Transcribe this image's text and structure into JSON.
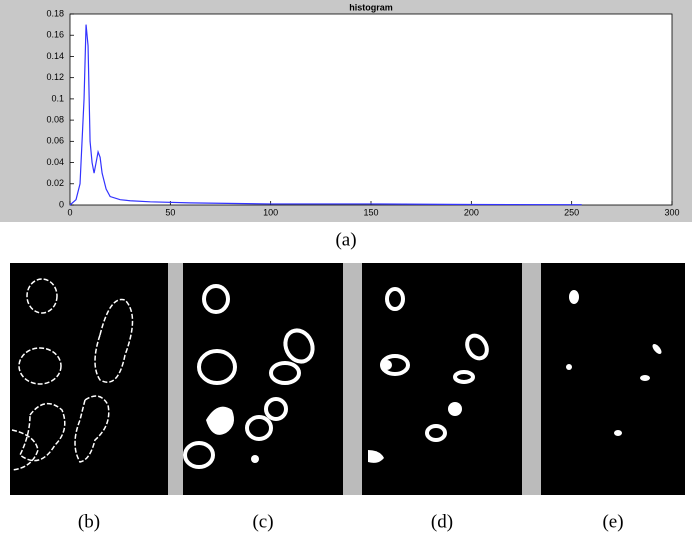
{
  "chart_data": {
    "type": "line",
    "title": "histogram",
    "x": [
      0,
      3,
      5,
      7,
      8,
      9,
      10,
      11,
      12,
      13,
      14,
      15,
      16,
      18,
      20,
      25,
      30,
      40,
      60,
      100,
      150,
      200,
      255
    ],
    "values": [
      0,
      0.005,
      0.02,
      0.1,
      0.17,
      0.15,
      0.06,
      0.04,
      0.03,
      0.04,
      0.05,
      0.045,
      0.03,
      0.015,
      0.008,
      0.005,
      0.004,
      0.003,
      0.002,
      0.001,
      0.001,
      0.0005,
      0.0003
    ],
    "color": "#3333ff",
    "xlim": [
      0,
      300
    ],
    "xticks": [
      0,
      50,
      100,
      150,
      200,
      250,
      300
    ],
    "ylim": [
      0,
      0.18
    ],
    "yticks": [
      0,
      0.02,
      0.04,
      0.06,
      0.08,
      0.1,
      0.12,
      0.14,
      0.16,
      0.18
    ],
    "grid": false
  },
  "figure": {
    "captions": [
      "(a)",
      "(b)",
      "(c)",
      "(d)",
      "(e)"
    ]
  }
}
